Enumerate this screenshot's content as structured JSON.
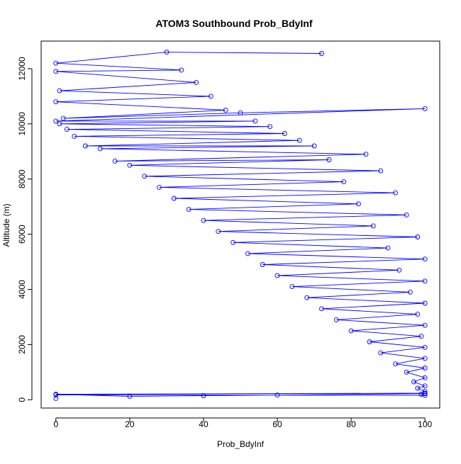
{
  "chart_data": {
    "type": "scatter",
    "title": "ATOM3 Southbound Prob_BdyInf",
    "xlabel": "Prob_BdyInf",
    "ylabel": "Altitude (m)",
    "xlim": [
      -4,
      104
    ],
    "ylim": [
      -300,
      13000
    ],
    "x_ticks": [
      0,
      20,
      40,
      60,
      80,
      100
    ],
    "y_ticks": [
      0,
      2000,
      4000,
      6000,
      8000,
      10000,
      12000
    ],
    "grid": false,
    "legend": "none",
    "markers": "open-circle",
    "connected": true,
    "colors": {
      "series": "#0000ff",
      "axis": "#000000",
      "background": "#ffffff"
    },
    "series": [
      {
        "values_note": "",
        "points": [
          [
            0,
            50
          ],
          [
            0,
            180
          ],
          [
            100,
            160
          ],
          [
            99,
            200
          ],
          [
            100,
            220
          ],
          [
            60,
            170
          ],
          [
            40,
            150
          ],
          [
            20,
            120
          ],
          [
            0,
            200
          ],
          [
            100,
            240
          ],
          [
            100,
            300
          ],
          [
            98,
            420
          ],
          [
            100,
            500
          ],
          [
            97,
            650
          ],
          [
            100,
            800
          ],
          [
            95,
            1000
          ],
          [
            100,
            1150
          ],
          [
            92,
            1300
          ],
          [
            100,
            1500
          ],
          [
            88,
            1700
          ],
          [
            100,
            1900
          ],
          [
            85,
            2100
          ],
          [
            99,
            2300
          ],
          [
            80,
            2500
          ],
          [
            100,
            2700
          ],
          [
            76,
            2900
          ],
          [
            98,
            3100
          ],
          [
            72,
            3300
          ],
          [
            100,
            3500
          ],
          [
            68,
            3700
          ],
          [
            96,
            3900
          ],
          [
            64,
            4100
          ],
          [
            100,
            4300
          ],
          [
            60,
            4500
          ],
          [
            93,
            4700
          ],
          [
            56,
            4900
          ],
          [
            100,
            5100
          ],
          [
            52,
            5300
          ],
          [
            90,
            5500
          ],
          [
            48,
            5700
          ],
          [
            98,
            5900
          ],
          [
            44,
            6100
          ],
          [
            86,
            6300
          ],
          [
            40,
            6500
          ],
          [
            95,
            6700
          ],
          [
            36,
            6900
          ],
          [
            82,
            7100
          ],
          [
            32,
            7300
          ],
          [
            92,
            7500
          ],
          [
            28,
            7700
          ],
          [
            78,
            7900
          ],
          [
            24,
            8100
          ],
          [
            88,
            8300
          ],
          [
            20,
            8500
          ],
          [
            74,
            8700
          ],
          [
            16,
            8650
          ],
          [
            84,
            8900
          ],
          [
            12,
            9100
          ],
          [
            70,
            9200
          ],
          [
            8,
            9200
          ],
          [
            66,
            9400
          ],
          [
            5,
            9550
          ],
          [
            62,
            9650
          ],
          [
            3,
            9800
          ],
          [
            58,
            9900
          ],
          [
            1,
            10000
          ],
          [
            54,
            10100
          ],
          [
            0,
            10100
          ],
          [
            100,
            10550
          ],
          [
            50,
            10400
          ],
          [
            2,
            10200
          ],
          [
            46,
            10500
          ],
          [
            0,
            10800
          ],
          [
            42,
            11000
          ],
          [
            1,
            11200
          ],
          [
            38,
            11500
          ],
          [
            0,
            11900
          ],
          [
            34,
            11950
          ],
          [
            0,
            12200
          ],
          [
            30,
            12600
          ],
          [
            72,
            12550
          ]
        ]
      }
    ]
  }
}
